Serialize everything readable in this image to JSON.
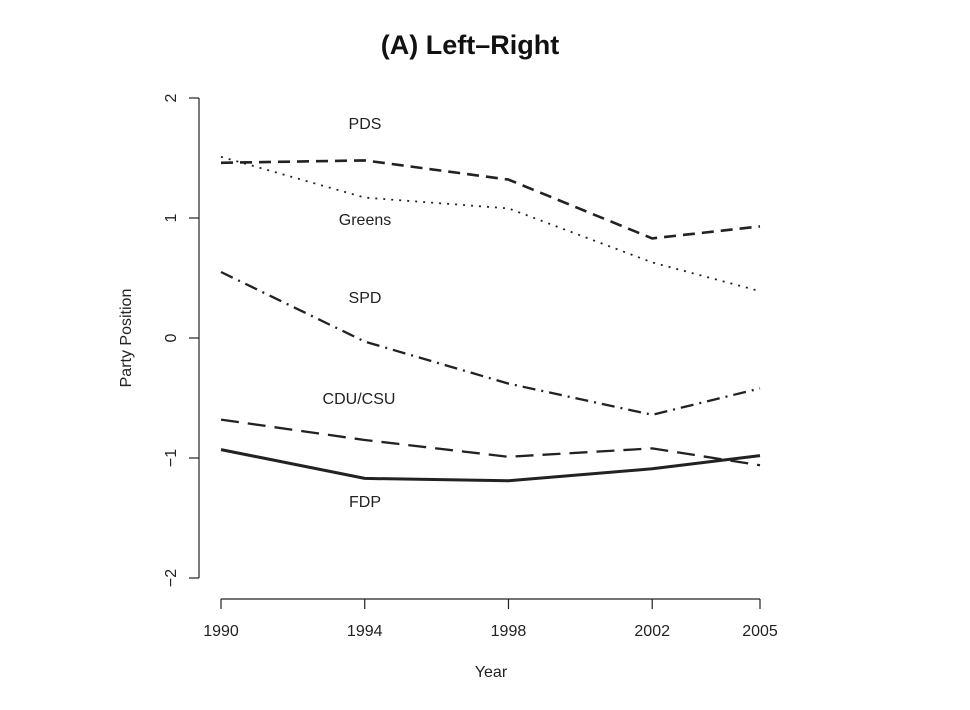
{
  "chart_data": {
    "type": "line",
    "title": "(A) Left–Right",
    "xlabel": "Year",
    "ylabel": "Party Position",
    "x": [
      1990,
      1994,
      1998,
      2002,
      2005
    ],
    "x_ticks": [
      "1990",
      "1994",
      "1998",
      "2002",
      "2005"
    ],
    "y_ticks": [
      "−2",
      "−1",
      "0",
      "1",
      "2"
    ],
    "y_tick_values": [
      -2,
      -1,
      0,
      1,
      2
    ],
    "ylim": [
      -2,
      2
    ],
    "grid": false,
    "series": [
      {
        "name": "PDS",
        "values": [
          1.46,
          1.48,
          1.32,
          0.83,
          0.93
        ],
        "line_style": "dashed",
        "line_width": "medium"
      },
      {
        "name": "Greens",
        "values": [
          1.51,
          1.17,
          1.08,
          0.63,
          0.39
        ],
        "line_style": "dotted",
        "line_width": "thin"
      },
      {
        "name": "SPD",
        "values": [
          0.55,
          -0.03,
          -0.38,
          -0.64,
          -0.42
        ],
        "line_style": "dot-dash",
        "line_width": "medium"
      },
      {
        "name": "CDU/CSU",
        "values": [
          -0.68,
          -0.85,
          -0.99,
          -0.92,
          -1.06
        ],
        "line_style": "long-dash",
        "line_width": "medium"
      },
      {
        "name": "FDP",
        "values": [
          -0.93,
          -1.17,
          -1.19,
          -1.09,
          -0.98
        ],
        "line_style": "solid",
        "line_width": "thick"
      }
    ]
  }
}
